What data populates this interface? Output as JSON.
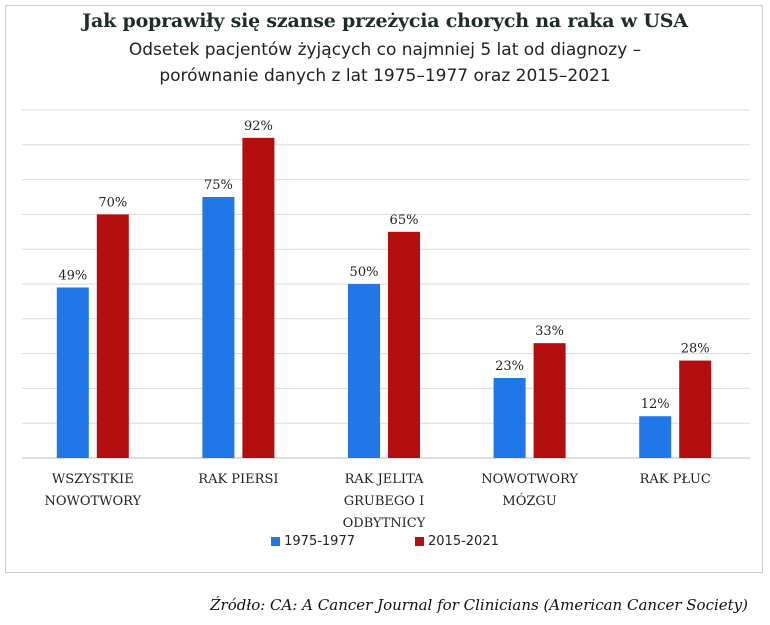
{
  "chart_data": {
    "type": "bar",
    "title": "Jak poprawiły się szanse przeżycia chorych na raka w USA",
    "subtitle_line1": "Odsetek pacjentów żyjących co najmniej 5 lat od diagnozy –",
    "subtitle_line2": "porównanie danych z lat 1975–1977 oraz 2015–2021",
    "categories": [
      [
        "WSZYSTKIE",
        "NOWOTWORY"
      ],
      [
        "RAK PIERSI"
      ],
      [
        "RAK JELITA",
        "GRUBEGO I",
        "ODBYTNICY"
      ],
      [
        "NOWOTWORY",
        "MÓZGU"
      ],
      [
        "RAK PŁUC"
      ]
    ],
    "series": [
      {
        "name": "1975-1977",
        "color": "#1f77e8",
        "values": [
          49,
          75,
          50,
          23,
          12
        ],
        "labels": [
          "49%",
          "75%",
          "50%",
          "23%",
          "12%"
        ]
      },
      {
        "name": "2015-2021",
        "color": "#b30f0f",
        "values": [
          70,
          92,
          65,
          33,
          28
        ],
        "labels": [
          "70%",
          "92%",
          "65%",
          "33%",
          "28%"
        ]
      }
    ],
    "ylim": [
      0,
      100
    ],
    "grid": true,
    "legend": "bottom",
    "xlabel": "",
    "ylabel": ""
  },
  "source": "Źródło: CA: A Cancer Journal for Clinicians (American Cancer Society)"
}
